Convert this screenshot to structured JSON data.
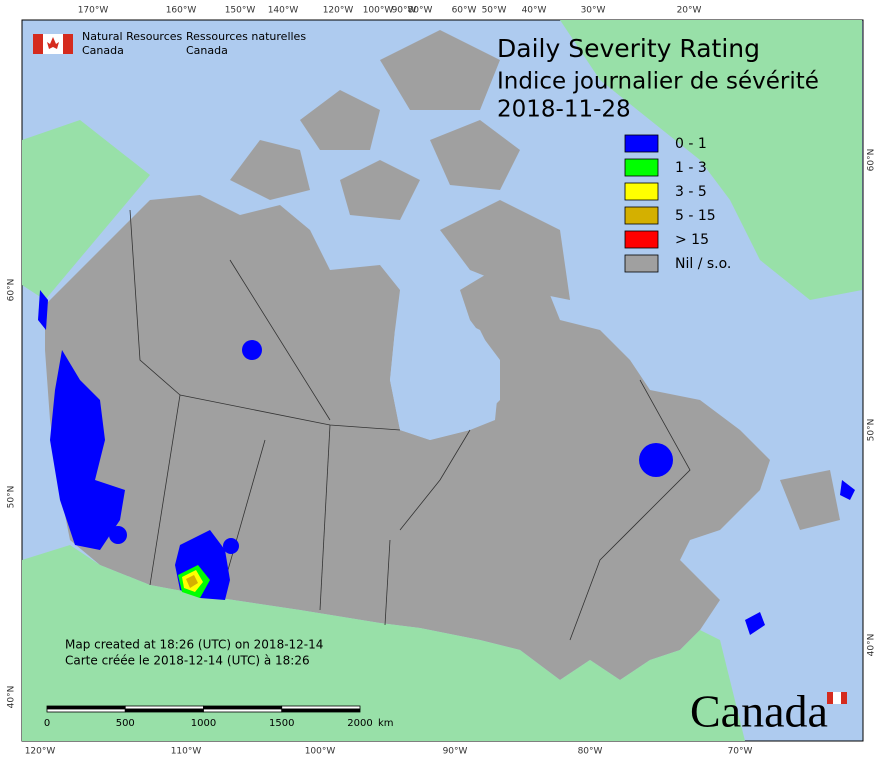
{
  "title": [
    "Daily Severity Rating",
    "Indice journalier de sévérité",
    "2018-11-28"
  ],
  "department": {
    "en": [
      "Natural Resources",
      "Canada"
    ],
    "fr": [
      "Ressources naturelles",
      "Canada"
    ]
  },
  "legend": [
    {
      "label": "0 - 1",
      "color": "#0000ff"
    },
    {
      "label": "1 - 3",
      "color": "#00ff00"
    },
    {
      "label": "3 - 5",
      "color": "#ffff00"
    },
    {
      "label": "5 - 15",
      "color": "#d4b000"
    },
    {
      "label": "> 15",
      "color": "#ff0000"
    },
    {
      "label": "Nil / s.o.",
      "color": "#a0a0a0"
    }
  ],
  "top_labels": [
    "170°W",
    "160°W",
    "150°W",
    "140°W",
    "120°W",
    "100°W",
    "90°W",
    "80°W",
    "60°W",
    "50°W",
    "40°W",
    "30°W",
    "20°W"
  ],
  "bottom_labels": [
    "120°W",
    "110°W",
    "100°W",
    "90°W",
    "80°W",
    "70°W"
  ],
  "left_labels": [
    "60°N",
    "50°N",
    "40°N"
  ],
  "right_labels": [
    "60°N",
    "50°N",
    "40°N"
  ],
  "credits": [
    "Map created at 18:26 (UTC) on 2018-12-14",
    "Carte créée le 2018-12-14 (UTC) à 18:26"
  ],
  "scale": {
    "labels": [
      0,
      500,
      1000,
      1500,
      2000
    ],
    "unit": "km"
  },
  "wordmark": "Canada"
}
